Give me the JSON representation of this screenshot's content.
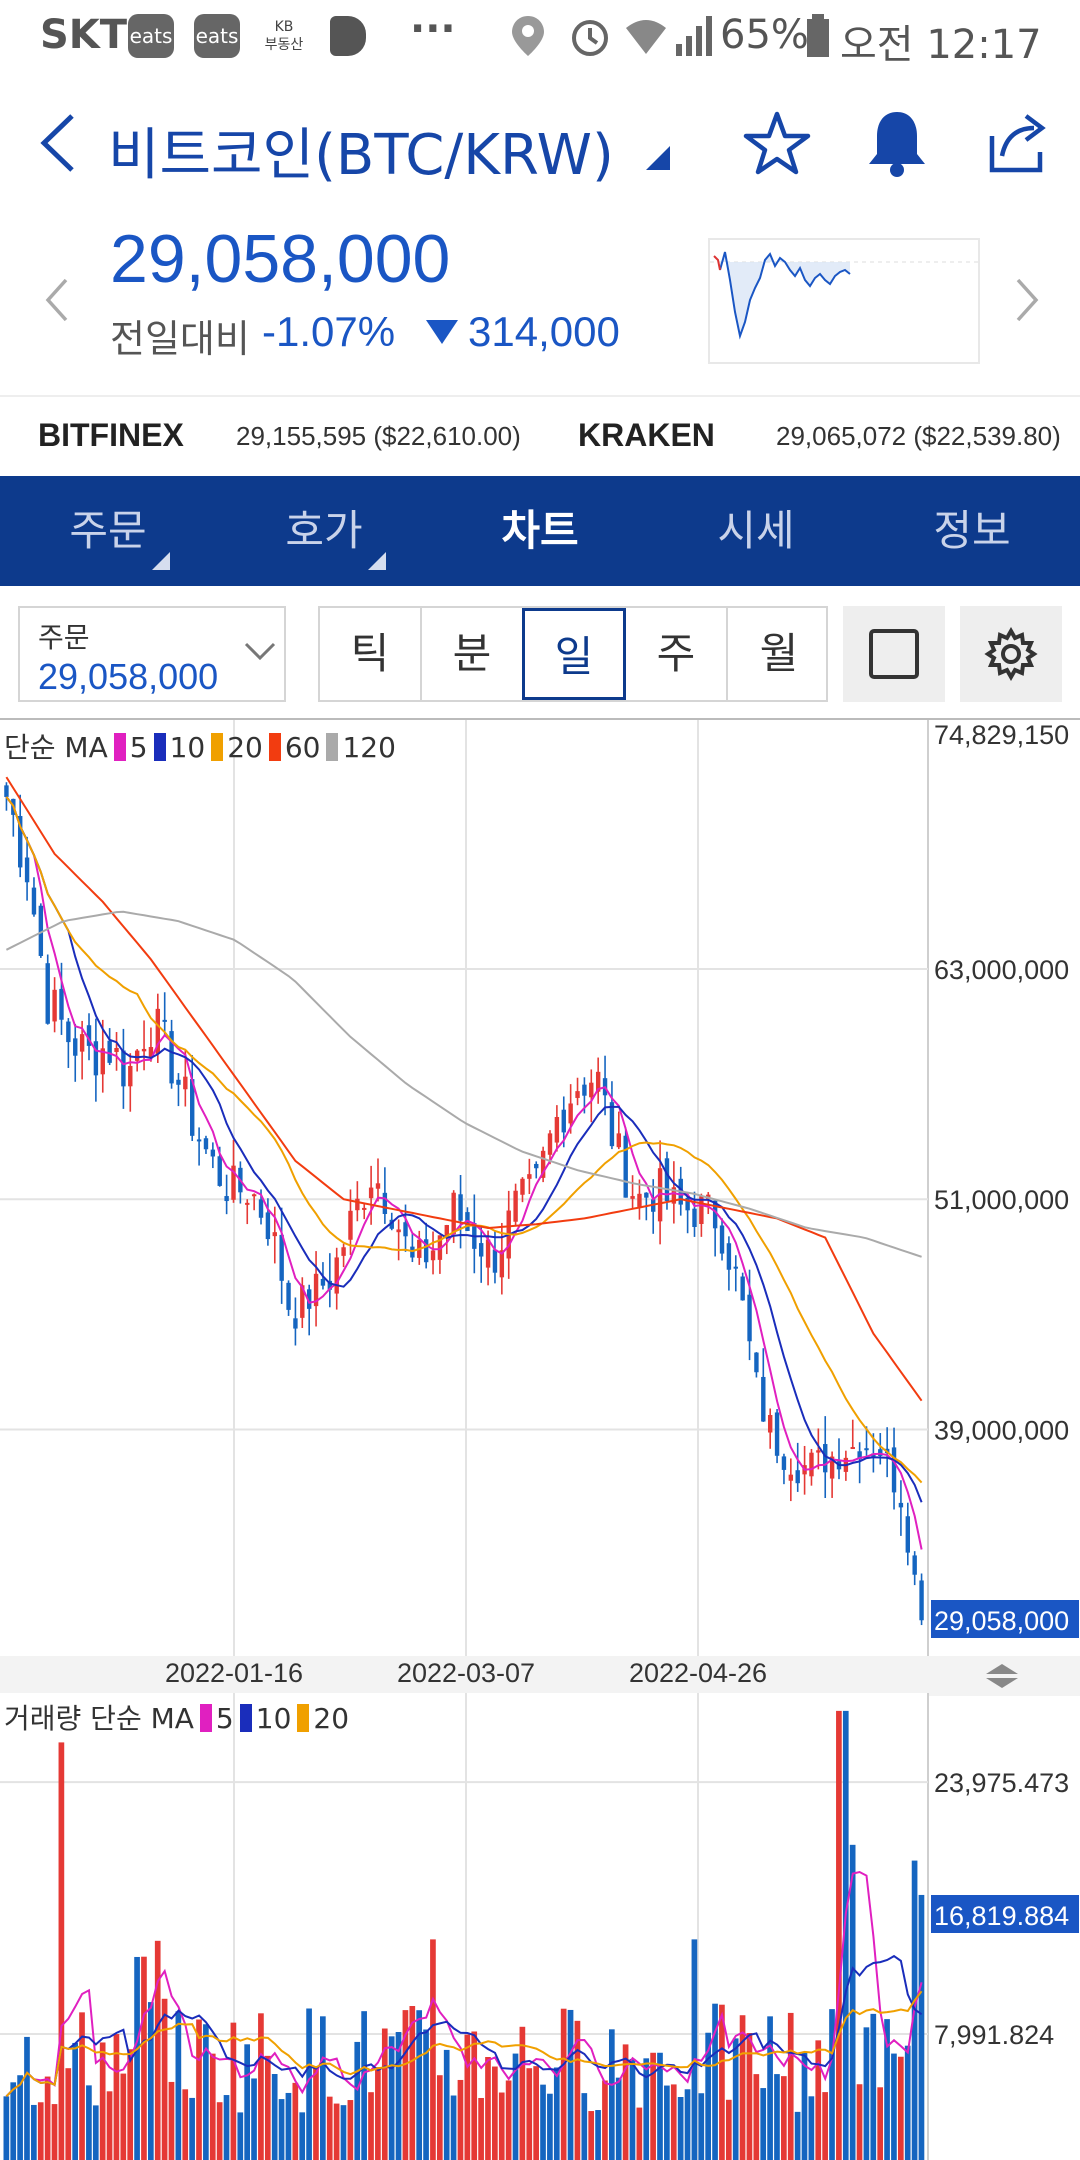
{
  "status_bar": {
    "carrier": "SKT",
    "badges": [
      "eats",
      "eats",
      "KB\n부동산"
    ],
    "more": "···",
    "battery": "65%",
    "time": "오전 12:17"
  },
  "header": {
    "back_icon": "chevron-left-icon",
    "title": "비트코인(BTC/KRW)",
    "icons": [
      "star-icon",
      "bell-icon",
      "share-icon"
    ]
  },
  "price": {
    "current": "29,058,000",
    "change_label": "전일대비",
    "change_pct": "-1.07%",
    "change_amount": "314,000",
    "down_color": "#1a56c4"
  },
  "exchanges": [
    {
      "name": "BITFINEX",
      "value": "29,155,595 ($22,610.00)"
    },
    {
      "name": "KRAKEN",
      "value": "29,065,072 ($22,539.80)"
    }
  ],
  "tabs": [
    {
      "label": "주문",
      "active": false,
      "has_menu": true
    },
    {
      "label": "호가",
      "active": false,
      "has_menu": true
    },
    {
      "label": "차트",
      "active": true,
      "has_menu": false
    },
    {
      "label": "시세",
      "active": false,
      "has_menu": false
    },
    {
      "label": "정보",
      "active": false,
      "has_menu": false
    }
  ],
  "controls": {
    "order_label": "주문",
    "order_value": "29,058,000",
    "periods": [
      {
        "label": "틱",
        "active": false
      },
      {
        "label": "분",
        "active": false
      },
      {
        "label": "일",
        "active": true
      },
      {
        "label": "주",
        "active": false
      },
      {
        "label": "월",
        "active": false
      }
    ]
  },
  "colors": {
    "brand": "#0d3a8c",
    "up": "#e53935",
    "down": "#1565c0",
    "ma5": "#e020c0",
    "ma10": "#1a2dbb",
    "ma20": "#f0a000",
    "ma60": "#f23c10",
    "ma120": "#aaaaaa"
  },
  "chart_data": [
    {
      "type": "candlestick",
      "legend_prefix": "단순 MA",
      "legend": [
        "5",
        "10",
        "20",
        "60",
        "120"
      ],
      "y_ticks": [
        "74,829,150",
        "63,000,000",
        "51,000,000",
        "39,000,000"
      ],
      "ylim": [
        27300000,
        74829150
      ],
      "current_price_label": "29,058,000",
      "x_labels": [
        "2022-01-16",
        "2022-03-07",
        "2022-04-26"
      ],
      "close_series": [
        72000000,
        68500000,
        61500000,
        59500000,
        58500000,
        59000000,
        57500000,
        60500000,
        58500000,
        55500000,
        53000000,
        51500000,
        51500000,
        49500000,
        45000000,
        46000000,
        47000000,
        50000000,
        52500000,
        50500000,
        47500000,
        48500000,
        50500000,
        49000000,
        48000000,
        50500000,
        51500000,
        55000000,
        57000000,
        57500000,
        53500000,
        51000000,
        51500000,
        50500000,
        50500000,
        50000000,
        46500000,
        40500000,
        38000000,
        37000000,
        37300000,
        37800000,
        38300000,
        38000000,
        35500000,
        29058000
      ],
      "ma_series": [
        {
          "name": "60",
          "values": [
            73000000,
            69000000,
            66500000,
            63500000,
            60000000,
            56500000,
            53000000,
            51000000,
            50500000,
            50000000,
            49500000,
            49700000,
            50000000,
            50500000,
            51000000,
            50500000,
            50000000,
            49000000,
            44000000,
            40500000
          ]
        },
        {
          "name": "120",
          "values": [
            64000000,
            65500000,
            66000000,
            65500000,
            64500000,
            62500000,
            59500000,
            57000000,
            55000000,
            53500000,
            52500000,
            51800000,
            51300000,
            50500000,
            49500000,
            49000000,
            48000000
          ]
        }
      ]
    },
    {
      "type": "bar",
      "legend_prefix": "거래량 단순 MA",
      "legend": [
        "5",
        "10",
        "20"
      ],
      "y_ticks": [
        "23,975.473",
        "7,991.824"
      ],
      "current_volume_label": "16,819.884"
    }
  ]
}
